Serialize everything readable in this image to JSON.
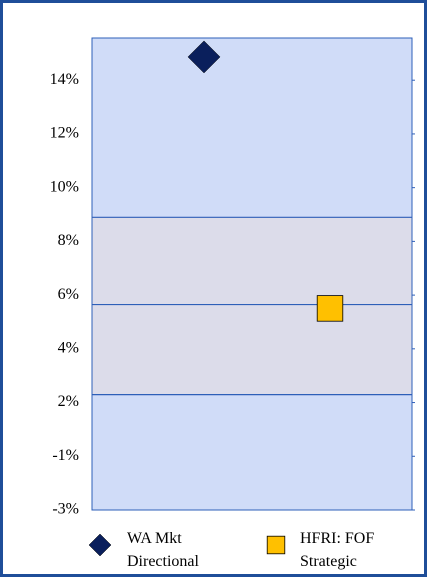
{
  "chart_data": {
    "type": "floating-box",
    "ylim": [
      -2.65,
      15.8
    ],
    "yticks": [
      {
        "value": -2.65,
        "label": "-3%"
      },
      {
        "value": -0.55,
        "label": "-1%"
      },
      {
        "value": 1.55,
        "label": "2%"
      },
      {
        "value": 3.65,
        "label": "4%"
      },
      {
        "value": 5.75,
        "label": "6%"
      },
      {
        "value": 7.85,
        "label": "8%"
      },
      {
        "value": 9.95,
        "label": "10%"
      },
      {
        "value": 12.05,
        "label": "12%"
      },
      {
        "value": 14.15,
        "label": "14%"
      }
    ],
    "box": {
      "low": 1.86,
      "median": 5.38,
      "high": 8.79,
      "color": "#dcdcea",
      "outer_color": "#d0dcf8",
      "edge_color": "#2e5fb8"
    },
    "series": [
      {
        "name": "WA Mkt Directional",
        "color": "#0a1f5c",
        "marker": "diamond",
        "values": [
          15.06
        ]
      },
      {
        "name": "HFRI: FOF Strategic",
        "color": "#ffc000",
        "marker": "square",
        "values": [
          5.23
        ]
      }
    ]
  }
}
